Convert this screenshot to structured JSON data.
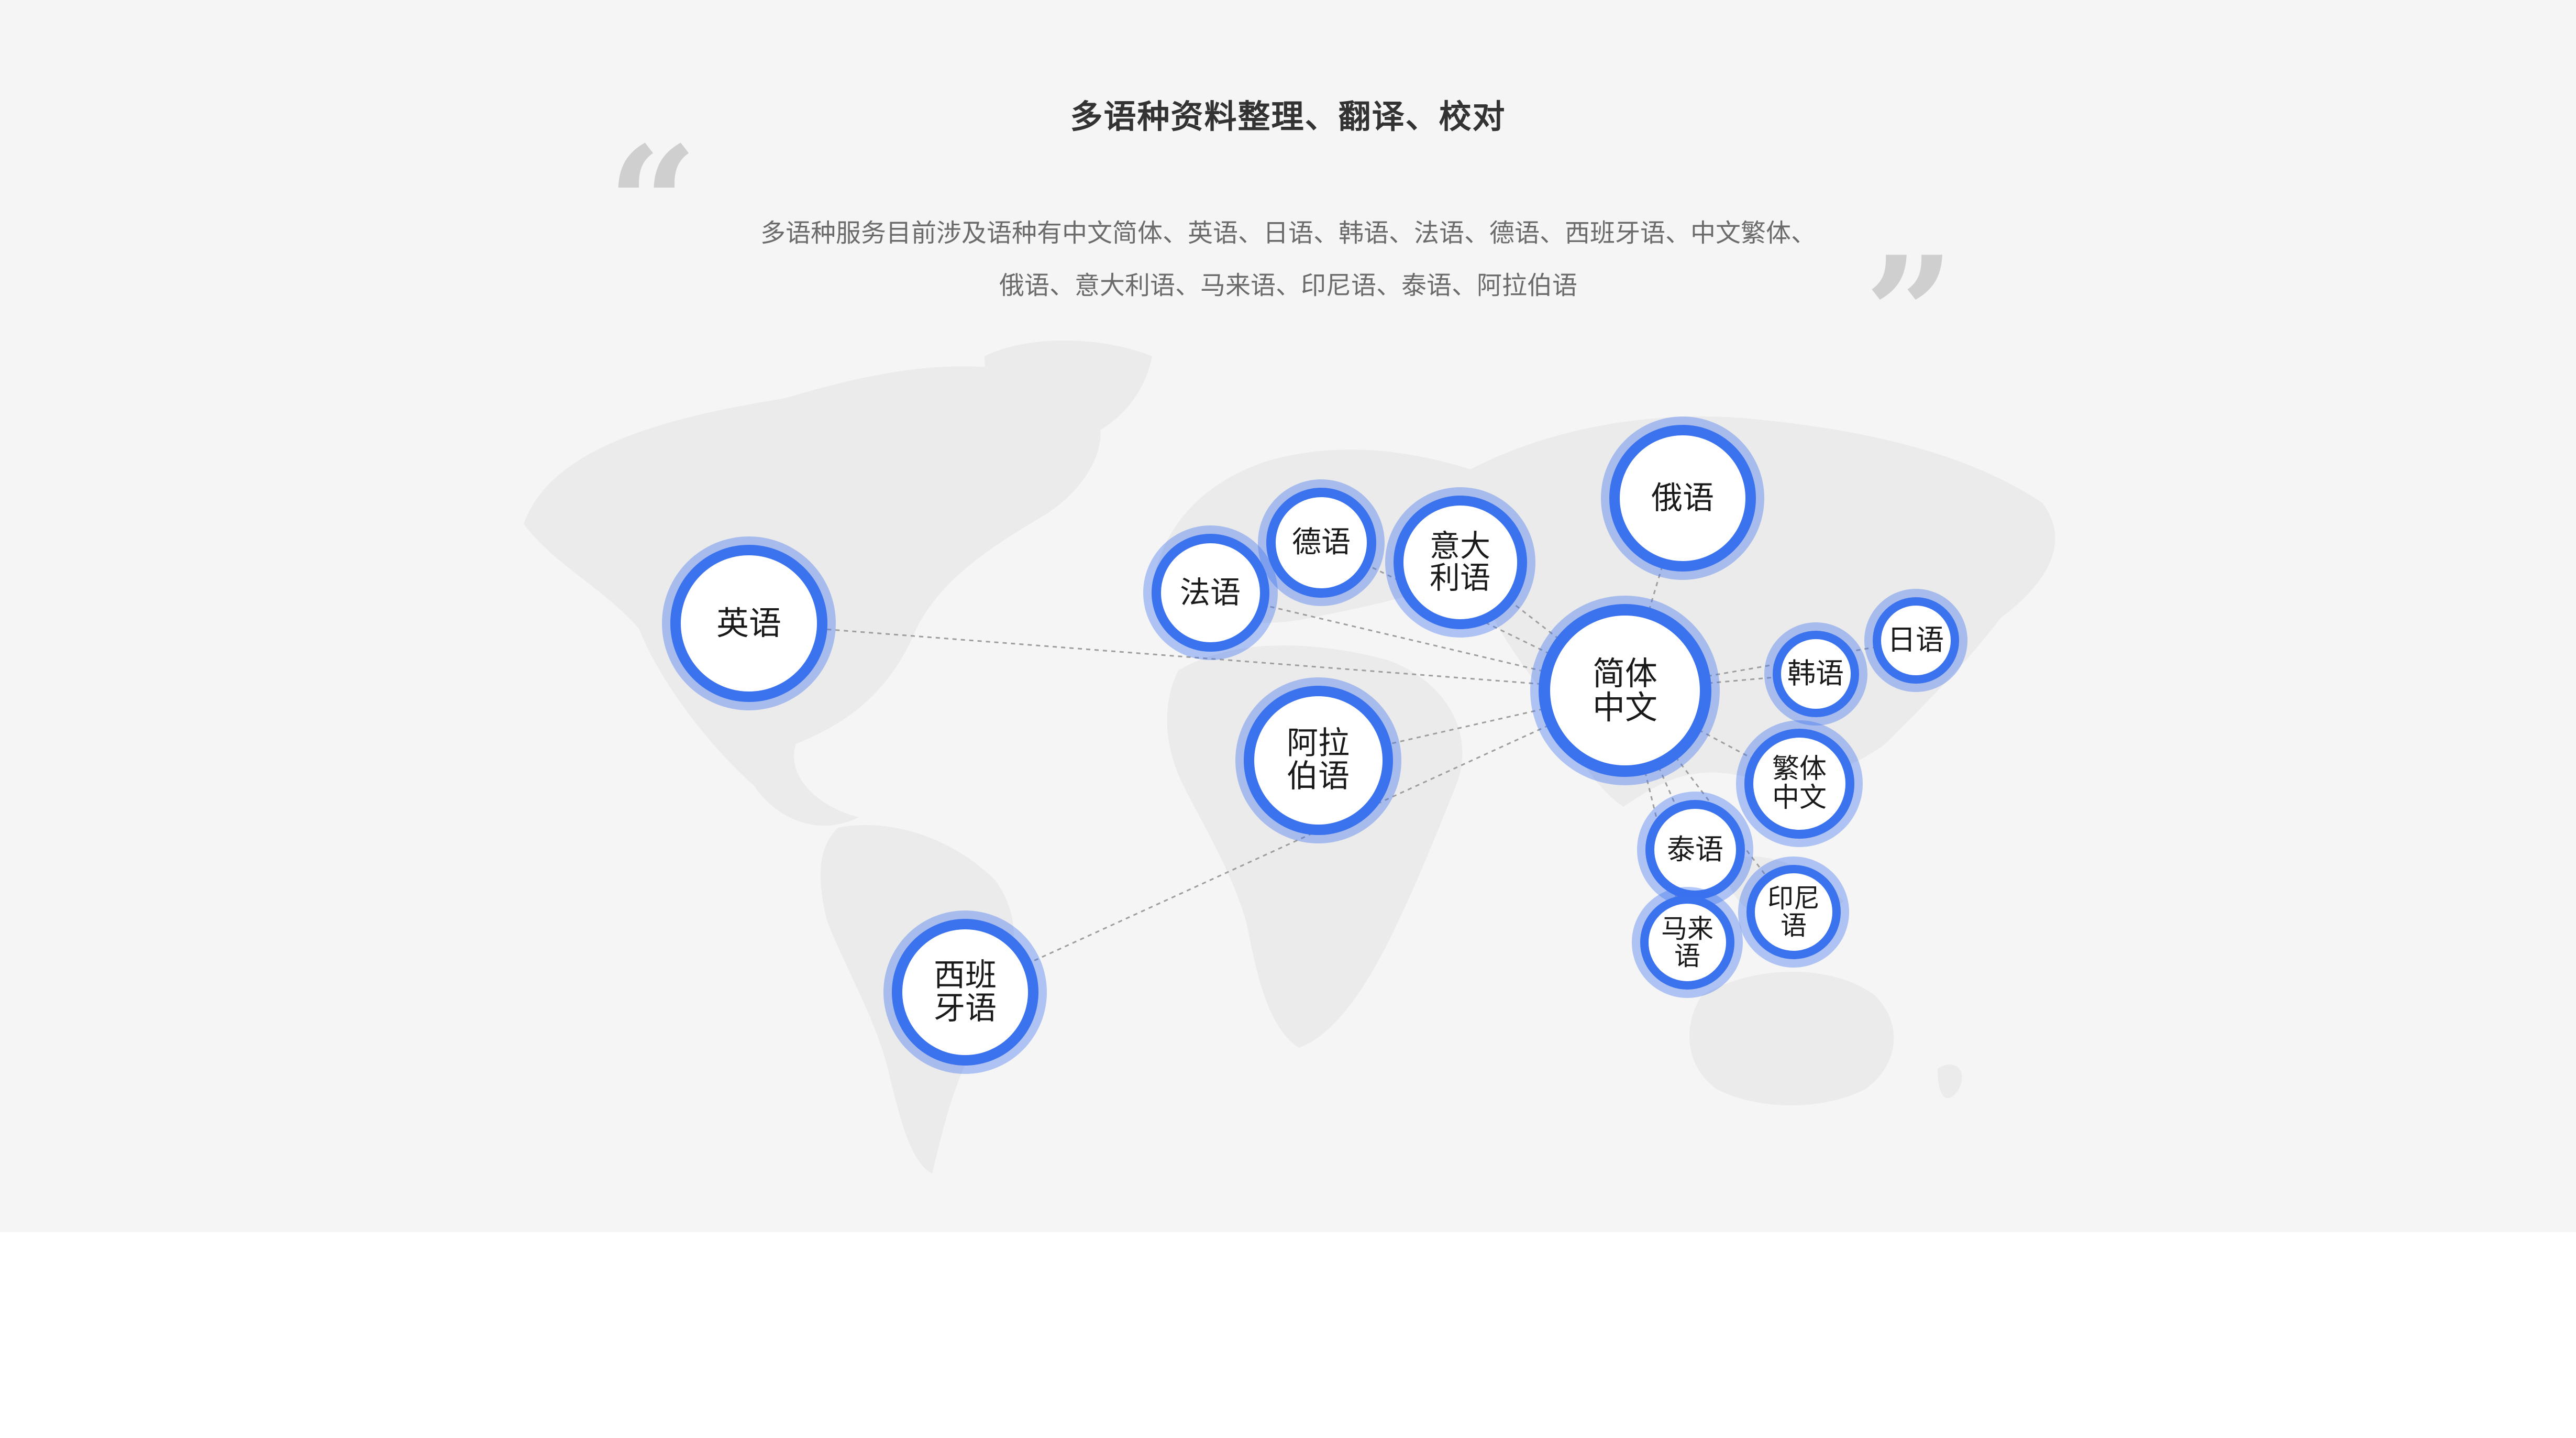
{
  "title": "多语种资料整理、翻译、校对",
  "description": {
    "line1": "多语种服务目前涉及语种有中文简体、英语、日语、韩语、法语、德语、西班牙语、中文繁体、",
    "line2": "俄语、意大利语、马来语、印尼语、泰语、阿拉伯语"
  },
  "colors": {
    "panel_background": "#f5f5f5",
    "bubble_ring": "#3b72ee",
    "map": "#ebebeb",
    "connector": "#9e9e9e"
  },
  "icons": {
    "open_quote": "left-double-quote-icon",
    "close_quote": "right-double-quote-icon",
    "map": "world-map-icon"
  },
  "diagram": {
    "hub": "chinese-simplified",
    "nodes": [
      {
        "id": "chinese-simplified",
        "label": "简体\n中文"
      },
      {
        "id": "english",
        "label": "英语"
      },
      {
        "id": "french",
        "label": "法语"
      },
      {
        "id": "german",
        "label": "德语"
      },
      {
        "id": "italian",
        "label": "意大\n利语"
      },
      {
        "id": "russian",
        "label": "俄语"
      },
      {
        "id": "arabic",
        "label": "阿拉\n伯语"
      },
      {
        "id": "spanish",
        "label": "西班\n牙语"
      },
      {
        "id": "korean",
        "label": "韩语"
      },
      {
        "id": "japanese",
        "label": "日语"
      },
      {
        "id": "chinese-traditional",
        "label": "繁体\n中文"
      },
      {
        "id": "thai",
        "label": "泰语"
      },
      {
        "id": "indonesian",
        "label": "印尼\n语"
      },
      {
        "id": "malay",
        "label": "马来\n语"
      }
    ],
    "links": [
      {
        "from": "chinese-simplified",
        "to": "english"
      },
      {
        "from": "chinese-simplified",
        "to": "french"
      },
      {
        "from": "chinese-simplified",
        "to": "german"
      },
      {
        "from": "chinese-simplified",
        "to": "italian"
      },
      {
        "from": "chinese-simplified",
        "to": "russian"
      },
      {
        "from": "chinese-simplified",
        "to": "arabic"
      },
      {
        "from": "chinese-simplified",
        "to": "spanish"
      },
      {
        "from": "chinese-simplified",
        "to": "korean"
      },
      {
        "from": "chinese-simplified",
        "to": "japanese"
      },
      {
        "from": "chinese-simplified",
        "to": "chinese-traditional"
      },
      {
        "from": "chinese-simplified",
        "to": "thai"
      },
      {
        "from": "chinese-simplified",
        "to": "indonesian"
      },
      {
        "from": "chinese-simplified",
        "to": "malay"
      }
    ]
  }
}
